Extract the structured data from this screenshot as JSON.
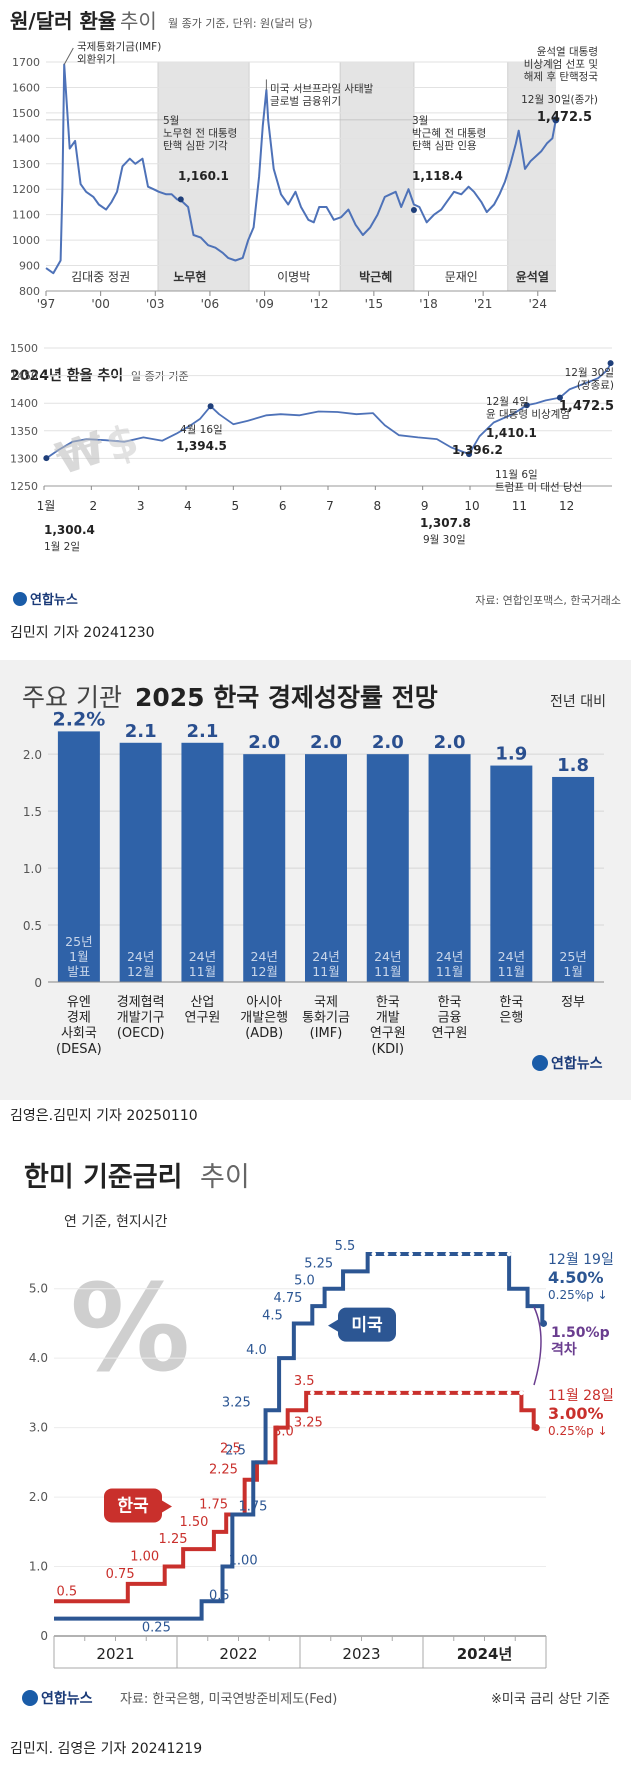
{
  "panel1": {
    "title": "원/달러 환율",
    "title_light": "추이",
    "subtitle": "월 종가 기준, 단위: 원(달러 당)",
    "chart_data": {
      "type": "line",
      "title": "원/달러 환율 추이",
      "subtitle": "월 종가 기준, 단위: 원(달러 당)",
      "ylim": [
        800,
        1700
      ],
      "yticks": [
        "1700",
        "1600",
        "1500",
        "1400",
        "1300",
        "1200",
        "1100",
        "1000",
        "900",
        "800"
      ],
      "xticks": [
        "'97",
        "'00",
        "'03",
        "'06",
        "'09",
        "'12",
        "'15",
        "'18",
        "'21",
        "'24"
      ],
      "x": [
        1997.0,
        1997.4,
        1997.8,
        1997.9,
        1998.0,
        1998.3,
        1998.6,
        1998.9,
        1999.2,
        1999.6,
        1999.9,
        2000.3,
        2000.6,
        2000.9,
        2001.2,
        2001.6,
        2001.9,
        2002.3,
        2002.6,
        2002.9,
        2003.2,
        2003.6,
        2003.9,
        2004.2,
        2004.5,
        2004.8,
        2005.1,
        2005.5,
        2005.9,
        2006.3,
        2006.7,
        2007.0,
        2007.4,
        2007.8,
        2008.1,
        2008.4,
        2008.7,
        2008.9,
        2009.1,
        2009.2,
        2009.5,
        2009.9,
        2010.3,
        2010.7,
        2011.0,
        2011.4,
        2011.7,
        2012.0,
        2012.4,
        2012.8,
        2013.2,
        2013.6,
        2014.0,
        2014.4,
        2014.8,
        2015.2,
        2015.6,
        2015.9,
        2016.2,
        2016.5,
        2016.9,
        2017.2,
        2017.5,
        2017.9,
        2018.3,
        2018.7,
        2019.0,
        2019.4,
        2019.8,
        2020.2,
        2020.5,
        2020.9,
        2021.2,
        2021.6,
        2021.9,
        2022.2,
        2022.5,
        2022.8,
        2022.95,
        2023.3,
        2023.6,
        2023.9,
        2024.2,
        2024.5,
        2024.8,
        2024.99
      ],
      "y": [
        890,
        870,
        920,
        1200,
        1690,
        1360,
        1390,
        1220,
        1190,
        1170,
        1140,
        1120,
        1150,
        1190,
        1290,
        1320,
        1300,
        1320,
        1210,
        1200,
        1190,
        1180,
        1180,
        1160,
        1150,
        1130,
        1020,
        1010,
        980,
        970,
        950,
        930,
        920,
        930,
        1000,
        1050,
        1250,
        1450,
        1590,
        1470,
        1280,
        1180,
        1140,
        1190,
        1130,
        1080,
        1070,
        1130,
        1130,
        1080,
        1090,
        1120,
        1060,
        1020,
        1050,
        1100,
        1170,
        1180,
        1190,
        1130,
        1200,
        1140,
        1130,
        1070,
        1100,
        1120,
        1150,
        1190,
        1180,
        1210,
        1190,
        1150,
        1110,
        1140,
        1180,
        1230,
        1300,
        1380,
        1430,
        1280,
        1310,
        1330,
        1350,
        1380,
        1400,
        1472.5
      ],
      "eras": [
        "김대중 정권",
        "노무현",
        "이명박",
        "박근혜",
        "문재인",
        "윤석열"
      ],
      "annotations": [
        "국제통화기금(IMF)\n외환위기",
        "5월\n노무현 전 대통령\n탄핵 심판 기각",
        "1,160.1",
        "미국 서브프라임 사태발\n글로벌 금융위기",
        "3월\n박근혜 전 대통령\n탄핵 심판 인용",
        "1,118.4",
        "윤석열 대통령\n비상계엄 선포 및\n해제 후 탄핵정국",
        "12월 30일(종가)",
        "1,472.5"
      ]
    },
    "sub_title": "2024년 환율 추이",
    "sub_subtitle": "일 종가 기준",
    "chart_data_2024": {
      "type": "line",
      "title": "2024년 환율 추이",
      "subtitle": "일 종가 기준",
      "ylim": [
        1250,
        1500
      ],
      "yticks": [
        "1500",
        "1450",
        "1400",
        "1350",
        "1300",
        "1250"
      ],
      "xticks": [
        "1월",
        "2",
        "3",
        "4",
        "5",
        "6",
        "7",
        "8",
        "9",
        "10",
        "11",
        "12"
      ],
      "x": [
        1.05,
        1.3,
        1.6,
        1.9,
        2.3,
        2.7,
        3.1,
        3.5,
        3.8,
        4.1,
        4.3,
        4.52,
        4.7,
        5.0,
        5.3,
        5.7,
        6.0,
        6.4,
        6.8,
        7.2,
        7.6,
        7.95,
        8.2,
        8.5,
        8.9,
        9.3,
        9.6,
        9.98,
        10.2,
        10.5,
        10.9,
        11.2,
        11.4,
        11.6,
        11.9,
        12.1,
        12.4,
        12.7,
        12.9,
        12.97
      ],
      "y": [
        1300.4,
        1315,
        1330,
        1335,
        1333,
        1330,
        1338,
        1332,
        1345,
        1360,
        1372,
        1394.5,
        1380,
        1362,
        1368,
        1378,
        1380,
        1378,
        1385,
        1384,
        1380,
        1382,
        1360,
        1342,
        1338,
        1335,
        1320,
        1307.8,
        1340,
        1365,
        1380,
        1396.2,
        1400,
        1405,
        1410.1,
        1425,
        1435,
        1445,
        1460,
        1472.5
      ],
      "annotations": [
        "1,300.4",
        "1월 2일",
        "4월 16일",
        "1,394.5",
        "1,307.8",
        "9월 30일",
        "1,396.2",
        "11월 6일\n트럼프 미 대선 당선",
        "12월 4일\n윤 대통령 비상계엄",
        "1,410.1",
        "12월 30일\n(장종료)",
        "1,472.5"
      ]
    },
    "logo": "연합뉴스",
    "source": "자료: 연합인포맥스, 한국거래소",
    "credit": "김민지 기자  20241230"
  },
  "panel2": {
    "title_light": "주요 기관",
    "title_bold": "2025 한국 경제성장률 전망",
    "unit_note": "전년 대비",
    "chart_data": {
      "type": "bar",
      "title": "주요 기관 2025 한국 경제성장률 전망",
      "ylim": [
        0,
        2.3
      ],
      "yticks": [
        "2.0",
        "1.5",
        "1.0",
        "0.5",
        "0"
      ],
      "categories": [
        "유엔\n경제\n사회국\n(DESA)",
        "경제협력\n개발기구\n(OECD)",
        "산업\n연구원",
        "아시아\n개발은행\n(ADB)",
        "국제\n통화기금\n(IMF)",
        "한국\n개발\n연구원\n(KDI)",
        "한국\n금융\n연구원",
        "한국\n은행",
        "정부"
      ],
      "values": [
        2.2,
        2.1,
        2.1,
        2.0,
        2.0,
        2.0,
        2.0,
        1.9,
        1.8
      ],
      "value_labels": [
        "2.2%",
        "2.1",
        "2.1",
        "2.0",
        "2.0",
        "2.0",
        "2.0",
        "1.9",
        "1.8"
      ],
      "release_dates": [
        "25년\n1월\n발표",
        "24년\n12월",
        "24년\n11월",
        "24년\n12월",
        "24년\n11월",
        "24년\n11월",
        "24년\n11월",
        "24년\n11월",
        "25년\n1월"
      ]
    },
    "logo": "연합뉴스",
    "credit": "김영은.김민지 기자  20250110"
  },
  "panel3": {
    "title_bold": "한미 기준금리",
    "title_light": "추이",
    "subtitle": "연 기준, 현지시간",
    "chart_data": {
      "type": "line",
      "title": "한미 기준금리 추이",
      "subtitle": "연 기준, 현지시간",
      "ylim": [
        0,
        5.5
      ],
      "yticks": [
        "5.0",
        "4.0",
        "3.0",
        "2.0",
        "1.0",
        "0"
      ],
      "xticks": [
        "2021",
        "2022",
        "2023",
        "2024년"
      ],
      "series": [
        {
          "name": "미국",
          "color": "#2c5693",
          "x": [
            2021.0,
            2022.2,
            2022.37,
            2022.45,
            2022.62,
            2022.72,
            2022.83,
            2022.95,
            2023.1,
            2023.2,
            2023.35,
            2023.55,
            2024.7,
            2024.85,
            2024.97
          ],
          "y": [
            0.25,
            0.5,
            1.0,
            1.75,
            2.5,
            3.25,
            4.0,
            4.5,
            4.75,
            5.0,
            5.25,
            5.5,
            5.0,
            4.75,
            4.5
          ],
          "labels": [
            "0.25",
            "0.5",
            "1.00",
            "1.75",
            "2.5",
            "3.25",
            "4.0",
            "4.5",
            "4.75",
            "5.0",
            "5.25",
            "5.5"
          ]
        },
        {
          "name": "한국",
          "color": "#c9302c",
          "x": [
            2021.0,
            2021.6,
            2021.9,
            2022.05,
            2022.3,
            2022.4,
            2022.55,
            2022.65,
            2022.8,
            2022.9,
            2023.05,
            2024.8,
            2024.9
          ],
          "y": [
            0.5,
            0.75,
            1.0,
            1.25,
            1.5,
            1.75,
            2.25,
            2.5,
            3.0,
            3.25,
            3.5,
            3.25,
            3.0
          ],
          "labels": [
            "0.5",
            "0.75",
            "1.00",
            "1.25",
            "1.50",
            "1.75",
            "2.25",
            "2.5",
            "3.0",
            "3.25",
            "3.5"
          ]
        }
      ],
      "annotations": [
        "12월 19일",
        "4.50%",
        "0.25%p ↓",
        "1.50%p\n격차",
        "11월 28일",
        "3.00%",
        "0.25%p ↓"
      ]
    },
    "logo": "연합뉴스",
    "source": "자료: 한국은행, 미국연방준비제도(Fed)",
    "footnote": "※미국 금리 상단 기준",
    "credit": "김민지. 김영은 기자  20241219"
  },
  "colors": {
    "line_blue": "#4e72b8",
    "bar_blue": "#2f62a8",
    "us_blue": "#2c5693",
    "kr_red": "#c9302c",
    "gap_purple": "#6a3d8f",
    "era_gray": "#e4e4e4"
  }
}
